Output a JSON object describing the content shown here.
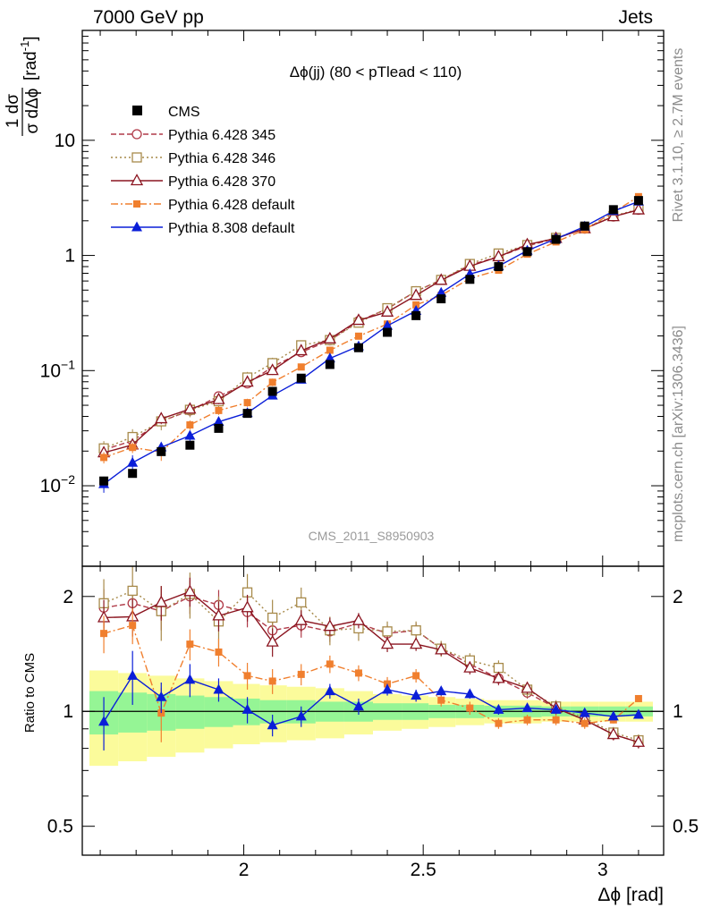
{
  "header": {
    "left": "7000 GeV pp",
    "right": "Jets",
    "side_top": "Rivet 3.1.10, ≥ 2.7M events",
    "side_bottom": "mcplots.cern.ch [arXiv:1306.3436]"
  },
  "chart_data": {
    "type": "scatter",
    "title": "Δϕ(jj) (80 < pTlead < 110)",
    "watermark": "CMS_2011_S8950903",
    "xlabel": "Δϕ [rad]",
    "ylabel_parts": {
      "frac_top": "1 dσ",
      "frac_bottom": "σ dΔϕ",
      "unit": "[rad",
      "unit_exp": "-1",
      "unit_end": "]"
    },
    "ratio_ylabel": "Ratio to CMS",
    "xlim": [
      1.55,
      3.17
    ],
    "ylim": [
      0.002,
      90
    ],
    "yscale": "log",
    "ratio_ylim": [
      0.42,
      2.4
    ],
    "xticks": [
      {
        "v": 2,
        "label": "2"
      },
      {
        "v": 2.5,
        "label": "2.5"
      },
      {
        "v": 3,
        "label": "3"
      }
    ],
    "yticks": [
      {
        "v": 0.01,
        "base": "10",
        "exp": "−2"
      },
      {
        "v": 0.1,
        "base": "10",
        "exp": "−1"
      },
      {
        "v": 1,
        "base": "1",
        "exp": ""
      },
      {
        "v": 10,
        "base": "10",
        "exp": ""
      }
    ],
    "ratio_yticks": [
      {
        "v": 0.5,
        "label": "0.5"
      },
      {
        "v": 1,
        "label": "1"
      },
      {
        "v": 2,
        "label": "2"
      }
    ],
    "x": [
      1.61,
      1.69,
      1.77,
      1.85,
      1.93,
      2.01,
      2.08,
      2.16,
      2.24,
      2.32,
      2.4,
      2.48,
      2.55,
      2.63,
      2.71,
      2.79,
      2.87,
      2.95,
      3.03,
      3.1
    ],
    "cms": {
      "name": "CMS",
      "values": [
        0.011,
        0.0128,
        0.0198,
        0.0225,
        0.0315,
        0.0425,
        0.066,
        0.086,
        0.113,
        0.158,
        0.215,
        0.3,
        0.42,
        0.62,
        0.8,
        1.08,
        1.38,
        1.8,
        2.5,
        3.0
      ],
      "band_outer": [
        0.28,
        0.26,
        0.24,
        0.22,
        0.2,
        0.18,
        0.17,
        0.16,
        0.15,
        0.13,
        0.11,
        0.1,
        0.09,
        0.08,
        0.07,
        0.07,
        0.06,
        0.06,
        0.06,
        0.06
      ],
      "band_inner": [
        0.13,
        0.12,
        0.11,
        0.1,
        0.09,
        0.08,
        0.07,
        0.07,
        0.06,
        0.06,
        0.05,
        0.05,
        0.04,
        0.04,
        0.035,
        0.035,
        0.03,
        0.03,
        0.03,
        0.03
      ]
    },
    "series": [
      {
        "name": "Pythia 6.428 345",
        "color": "#b03a48",
        "dash": "6,3",
        "marker": "open-circle",
        "ratio": [
          1.87,
          1.92,
          1.83,
          2.0,
          1.9,
          1.82,
          1.63,
          1.68,
          1.62,
          1.7,
          1.6,
          1.63,
          1.46,
          1.33,
          1.22,
          1.12,
          1.02,
          0.95,
          0.87,
          0.83
        ],
        "err": [
          0.22,
          0.22,
          0.2,
          0.2,
          0.18,
          0.16,
          0.14,
          0.12,
          0.1,
          0.09,
          0.08,
          0.07,
          0.06,
          0.05,
          0.05,
          0.04,
          0.04,
          0.03,
          0.03,
          0.03
        ]
      },
      {
        "name": "Pythia 6.428 346",
        "color": "#a78a4a",
        "dash": "2,3",
        "marker": "open-square",
        "ratio": [
          1.92,
          2.07,
          1.83,
          2.03,
          1.72,
          2.05,
          1.76,
          1.93,
          1.63,
          1.65,
          1.62,
          1.63,
          1.46,
          1.36,
          1.3,
          1.14,
          1.03,
          0.96,
          0.88,
          0.84
        ],
        "err": [
          0.3,
          0.35,
          0.3,
          0.28,
          0.28,
          0.24,
          0.2,
          0.18,
          0.14,
          0.12,
          0.1,
          0.09,
          0.07,
          0.06,
          0.06,
          0.05,
          0.04,
          0.04,
          0.03,
          0.03
        ]
      },
      {
        "name": "Pythia 6.428 370",
        "color": "#8b1520",
        "dash": "",
        "marker": "open-triangle",
        "ratio": [
          1.76,
          1.77,
          1.93,
          2.06,
          1.78,
          1.87,
          1.52,
          1.73,
          1.67,
          1.73,
          1.5,
          1.5,
          1.45,
          1.3,
          1.22,
          1.15,
          1.02,
          0.95,
          0.87,
          0.83
        ],
        "err": [
          0.2,
          0.2,
          0.2,
          0.18,
          0.16,
          0.15,
          0.13,
          0.11,
          0.09,
          0.08,
          0.07,
          0.06,
          0.05,
          0.05,
          0.04,
          0.04,
          0.03,
          0.03,
          0.03,
          0.03
        ]
      },
      {
        "name": "Pythia 6.428 default",
        "color": "#f07f2e",
        "dash": "8,3,2,3",
        "marker": "filled-square",
        "ratio": [
          1.6,
          1.68,
          0.99,
          1.5,
          1.43,
          1.24,
          1.2,
          1.25,
          1.33,
          1.26,
          1.18,
          1.24,
          1.07,
          1.02,
          0.93,
          0.95,
          0.95,
          0.93,
          0.95,
          1.08
        ],
        "err": [
          0.18,
          0.18,
          0.16,
          0.14,
          0.12,
          0.1,
          0.09,
          0.08,
          0.07,
          0.06,
          0.05,
          0.05,
          0.04,
          0.04,
          0.03,
          0.03,
          0.03,
          0.03,
          0.02,
          0.02
        ]
      },
      {
        "name": "Pythia 8.308 default",
        "color": "#0a1ed8",
        "dash": "",
        "marker": "filled-triangle",
        "ratio": [
          0.94,
          1.24,
          1.09,
          1.21,
          1.14,
          1.01,
          0.92,
          0.97,
          1.13,
          1.03,
          1.14,
          1.1,
          1.13,
          1.11,
          1.01,
          1.02,
          1.01,
          0.99,
          0.97,
          0.98
        ],
        "err": [
          0.15,
          0.2,
          0.1,
          0.12,
          0.08,
          0.08,
          0.06,
          0.06,
          0.05,
          0.05,
          0.04,
          0.04,
          0.03,
          0.03,
          0.03,
          0.02,
          0.02,
          0.02,
          0.02,
          0.02
        ]
      }
    ]
  }
}
